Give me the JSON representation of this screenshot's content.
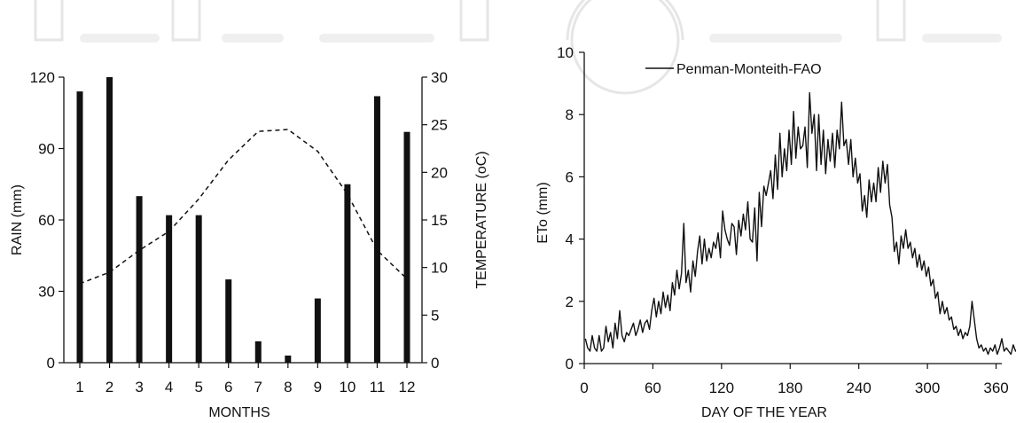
{
  "colors": {
    "ink": "#111111",
    "watermark": "#e6e6e6"
  },
  "chart_data": [
    {
      "type": "bar",
      "xlabel": "MONTHS",
      "ylabel": "RAIN (mm)",
      "y2label": "TEMPERATURE (oC)",
      "categories": [
        "1",
        "2",
        "3",
        "4",
        "5",
        "6",
        "7",
        "8",
        "9",
        "10",
        "11",
        "12"
      ],
      "ylim": [
        0,
        120
      ],
      "yticks": [
        "0",
        "30",
        "60",
        "90",
        "120"
      ],
      "y2lim": [
        0,
        30
      ],
      "y2ticks": [
        "0",
        "5",
        "10",
        "15",
        "20",
        "25",
        "30"
      ],
      "series": [
        {
          "kind": "bar",
          "axis": "left",
          "values": [
            114,
            120,
            70,
            62,
            62,
            35,
            9,
            3,
            27,
            75,
            112,
            97
          ]
        },
        {
          "kind": "line",
          "style": "dashed",
          "axis": "right",
          "values": [
            8.3,
            9.5,
            11.8,
            13.8,
            17.2,
            21.3,
            24.3,
            24.5,
            22.2,
            17.7,
            11.8,
            8.8
          ]
        }
      ]
    },
    {
      "type": "line",
      "xlabel": "DAY OF THE YEAR",
      "ylabel": "ETo (mm)",
      "xlim": [
        0,
        365
      ],
      "xticks": [
        "0",
        "60",
        "120",
        "180",
        "240",
        "300",
        "360"
      ],
      "ylim": [
        0,
        10
      ],
      "yticks": [
        "0",
        "2",
        "4",
        "6",
        "8",
        "10"
      ],
      "legend": "top-left",
      "series": [
        {
          "name": "Penman-Monteith-FAO",
          "x0": 1,
          "dx": 2,
          "values": [
            0.8,
            0.5,
            0.4,
            0.9,
            0.5,
            0.4,
            0.9,
            0.4,
            0.5,
            1.2,
            0.7,
            1.0,
            0.5,
            1.3,
            0.8,
            1.7,
            0.9,
            0.7,
            1.0,
            0.9,
            1.1,
            1.3,
            0.9,
            1.1,
            1.4,
            1.0,
            1.3,
            1.4,
            1.1,
            1.7,
            2.1,
            1.5,
            2.0,
            1.6,
            2.3,
            1.8,
            2.2,
            1.7,
            2.6,
            2.2,
            3.0,
            2.4,
            2.9,
            4.5,
            2.6,
            3.0,
            2.3,
            3.3,
            2.8,
            3.6,
            4.1,
            3.2,
            4.0,
            3.3,
            3.7,
            3.4,
            3.9,
            3.7,
            4.2,
            3.4,
            4.9,
            4.3,
            4.0,
            3.8,
            4.5,
            4.4,
            3.5,
            4.6,
            4.1,
            4.8,
            4.3,
            5.2,
            4.0,
            3.9,
            5.0,
            3.3,
            5.5,
            4.4,
            5.7,
            5.4,
            5.8,
            6.2,
            5.3,
            6.7,
            5.6,
            7.4,
            6.0,
            6.9,
            6.2,
            7.5,
            6.4,
            8.1,
            6.6,
            7.6,
            6.9,
            7.0,
            7.6,
            6.3,
            8.7,
            7.4,
            8.0,
            6.2,
            8.0,
            6.4,
            7.5,
            6.1,
            7.2,
            6.5,
            7.4,
            6.3,
            7.5,
            6.9,
            8.4,
            7.0,
            7.2,
            6.4,
            7.2,
            6.0,
            6.6,
            5.8,
            6.1,
            4.9,
            5.4,
            4.7,
            5.9,
            5.2,
            5.8,
            5.2,
            6.3,
            5.5,
            6.5,
            5.8,
            6.4,
            5.1,
            4.7,
            3.6,
            3.9,
            3.2,
            4.1,
            3.7,
            4.3,
            3.7,
            3.9,
            3.4,
            3.7,
            3.1,
            3.5,
            3.0,
            3.3,
            2.8,
            3.1,
            2.5,
            2.7,
            2.1,
            2.3,
            1.6,
            2.0,
            1.6,
            1.8,
            1.4,
            1.5,
            1.1,
            1.2,
            0.9,
            1.1,
            0.8,
            1.0,
            0.9,
            1.2,
            2.0,
            1.4,
            0.8,
            0.5,
            0.6,
            0.4,
            0.5,
            0.3,
            0.5,
            0.4,
            0.6,
            0.3,
            0.5,
            0.8,
            0.4,
            0.5,
            0.4,
            0.3,
            0.6,
            0.4,
            0.5,
            1.1,
            0.3,
            0.8,
            0.5
          ]
        }
      ]
    }
  ]
}
